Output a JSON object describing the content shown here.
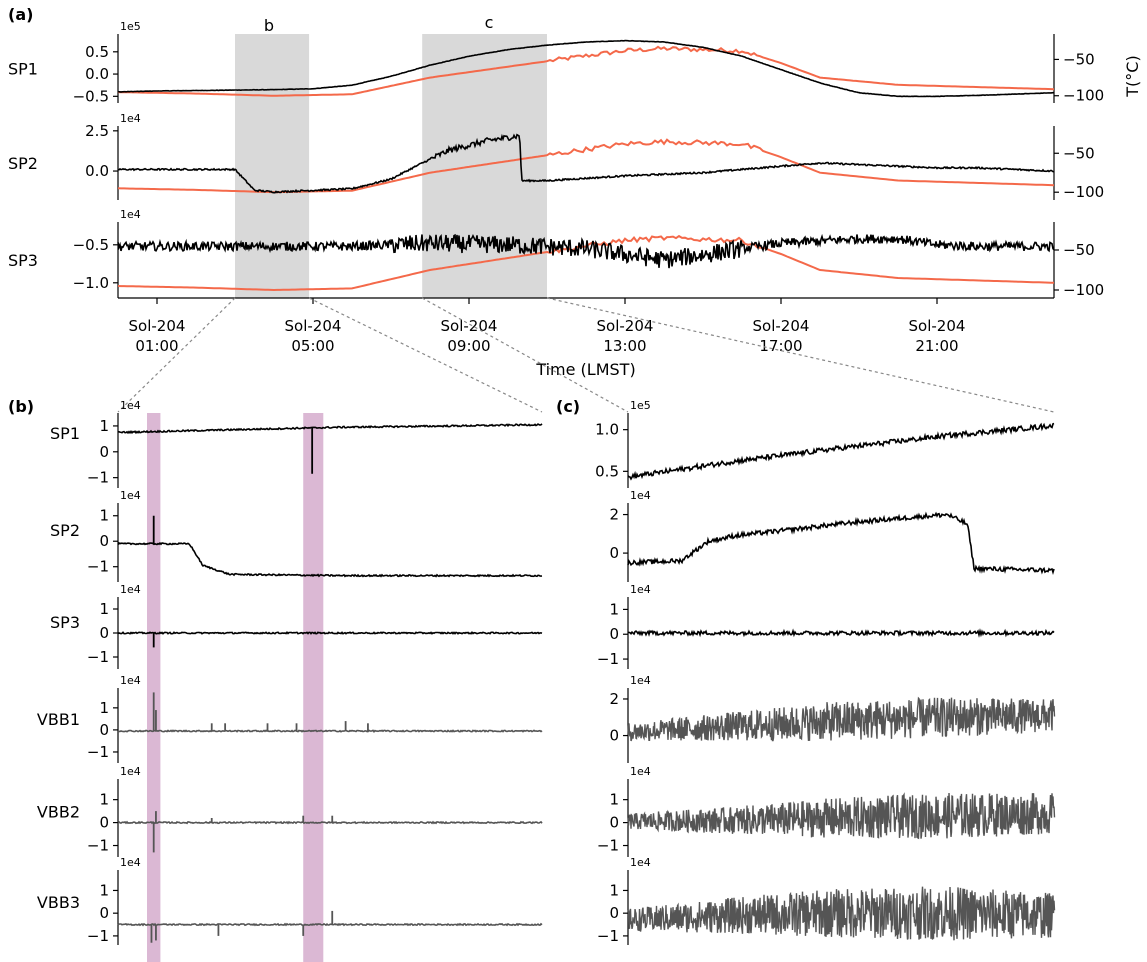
{
  "panels": {
    "a": {
      "label": "(a)",
      "xlabel": "Time (LMST)",
      "right_ylabel": "T(°C)",
      "shade_b": "b",
      "shade_c": "c",
      "ticks": [
        "Sol-204\n01:00",
        "Sol-204\n05:00",
        "Sol-204\n09:00",
        "Sol-204\n13:00",
        "Sol-204\n17:00",
        "Sol-204\n21:00"
      ]
    },
    "b": {
      "label": "(b)"
    },
    "c": {
      "label": "(c)"
    }
  },
  "colors": {
    "signal": "#000000",
    "vbb_signal": "#555555",
    "temperature": "#f4694a",
    "shade_gray": "#d9d9d9",
    "shade_event": "#dbb8d4"
  },
  "chart_data": [
    {
      "type": "line",
      "panel": "a",
      "xlabel": "Time (LMST)",
      "x_ticks": [
        "Sol-204 01:00",
        "Sol-204 05:00",
        "Sol-204 09:00",
        "Sol-204 13:00",
        "Sol-204 17:00",
        "Sol-204 21:00"
      ],
      "x_range_hours": [
        0,
        24
      ],
      "shaded_windows": [
        {
          "label": "b",
          "hours": [
            3.0,
            4.9
          ]
        },
        {
          "label": "c",
          "hours": [
            7.8,
            11.0
          ]
        }
      ],
      "rows": [
        {
          "name": "SP1",
          "scale": "1e5",
          "yticks": [
            "0.5",
            "0.0",
            "−0.5"
          ],
          "ytick_values": [
            0.5,
            0.0,
            -0.5
          ],
          "ylim": [
            -0.65,
            0.9
          ],
          "right_yticks": [
            "−50",
            "−100"
          ],
          "right_ytick_values": [
            -50,
            -100
          ],
          "right_ylim": [
            -110,
            -15
          ],
          "signal": {
            "hours": [
              0,
              1,
              2,
              3,
              4,
              5,
              6,
              7,
              8,
              9,
              10,
              11,
              12,
              13,
              14,
              15,
              16,
              17,
              18,
              19,
              20,
              21,
              22,
              23,
              24
            ],
            "values": [
              -0.4,
              -0.38,
              -0.37,
              -0.36,
              -0.35,
              -0.33,
              -0.25,
              -0.05,
              0.2,
              0.4,
              0.55,
              0.65,
              0.72,
              0.75,
              0.72,
              0.6,
              0.4,
              0.1,
              -0.2,
              -0.42,
              -0.5,
              -0.5,
              -0.48,
              -0.45,
              -0.42
            ]
          },
          "temperature": {
            "hours": [
              0,
              2,
              4,
              6,
              8,
              10,
              12,
              13,
              14,
              16,
              17,
              18,
              20,
              22,
              24
            ],
            "values": [
              -95,
              -97,
              -100,
              -98,
              -75,
              -60,
              -45,
              -38,
              -35,
              -38,
              -55,
              -75,
              -85,
              -88,
              -91
            ]
          }
        },
        {
          "name": "SP2",
          "scale": "1e4",
          "yticks": [
            "2.5",
            "0.0"
          ],
          "ytick_values": [
            2.5,
            0.0
          ],
          "ylim": [
            -1.8,
            2.8
          ],
          "right_yticks": [
            "−50",
            "−100"
          ],
          "right_ytick_values": [
            -50,
            -100
          ],
          "right_ylim": [
            -110,
            -15
          ],
          "signal": {
            "hours": [
              0,
              1,
              2,
              3,
              3.5,
              4,
              5,
              6,
              7,
              7.8,
              8.5,
              9.5,
              10.3,
              10.35,
              11,
              13,
              15,
              17,
              18,
              19,
              20,
              21,
              22,
              23,
              24
            ],
            "values": [
              0.1,
              0.1,
              0.1,
              0.1,
              -1.2,
              -1.3,
              -1.2,
              -1.1,
              -0.5,
              0.5,
              1.3,
              1.9,
              2.2,
              -0.6,
              -0.6,
              -0.3,
              -0.1,
              0.3,
              0.5,
              0.4,
              0.3,
              0.2,
              0.2,
              0.1,
              0.0
            ]
          },
          "temperature": {
            "hours": [
              0,
              2,
              4,
              6,
              8,
              10,
              12,
              13,
              14,
              16,
              17,
              18,
              20,
              22,
              24
            ],
            "values": [
              -95,
              -97,
              -100,
              -98,
              -75,
              -60,
              -45,
              -38,
              -35,
              -38,
              -55,
              -75,
              -85,
              -88,
              -91
            ]
          }
        },
        {
          "name": "SP3",
          "scale": "1e4",
          "yticks": [
            "−0.5",
            "−1.0"
          ],
          "ytick_values": [
            -0.5,
            -1.0
          ],
          "ylim": [
            -1.2,
            -0.2
          ],
          "right_yticks": [
            "−50",
            "−100"
          ],
          "right_ytick_values": [
            -50,
            -100
          ],
          "right_ylim": [
            -110,
            -15
          ],
          "signal": {
            "hours": [
              0,
              2,
              4,
              6,
              8,
              10,
              12,
              14,
              15,
              16,
              17,
              18,
              19,
              20,
              21,
              22,
              24
            ],
            "values": [
              -0.52,
              -0.52,
              -0.52,
              -0.52,
              -0.48,
              -0.5,
              -0.55,
              -0.7,
              -0.63,
              -0.55,
              -0.48,
              -0.45,
              -0.42,
              -0.42,
              -0.5,
              -0.52,
              -0.52
            ]
          },
          "temperature": {
            "hours": [
              0,
              2,
              4,
              6,
              8,
              10,
              12,
              13,
              14,
              16,
              17,
              18,
              20,
              22,
              24
            ],
            "values": [
              -95,
              -97,
              -100,
              -98,
              -75,
              -60,
              -45,
              -38,
              -35,
              -38,
              -55,
              -75,
              -85,
              -88,
              -91
            ]
          }
        }
      ]
    },
    {
      "type": "line",
      "panel": "b",
      "x_range_hours": [
        3.0,
        4.9
      ],
      "event_windows_hours": [
        [
          3.13,
          3.19
        ],
        [
          3.83,
          3.92
        ]
      ],
      "rows": [
        {
          "name": "SP1",
          "scale": "1e4",
          "yticks": [
            "1",
            "0",
            "−1"
          ],
          "ytick_values": [
            1,
            0,
            -1
          ],
          "ylim": [
            -1.4,
            1.5
          ],
          "baseline": {
            "hours": [
              3.0,
              3.5,
              4.0,
              4.5,
              4.9
            ],
            "values": [
              0.75,
              0.85,
              0.95,
              1.0,
              1.05
            ]
          },
          "spikes": [
            {
              "hour": 3.87,
              "value": -0.85
            }
          ]
        },
        {
          "name": "SP2",
          "scale": "1e4",
          "yticks": [
            "1",
            "0",
            "−1"
          ],
          "ytick_values": [
            1,
            0,
            -1
          ],
          "ylim": [
            -1.6,
            1.5
          ],
          "baseline": {
            "hours": [
              3.0,
              3.3,
              3.32,
              3.38,
              3.5,
              4.0,
              4.5,
              4.9
            ],
            "values": [
              -0.1,
              -0.1,
              -0.1,
              -0.95,
              -1.3,
              -1.35,
              -1.35,
              -1.35
            ]
          },
          "spikes": [
            {
              "hour": 3.16,
              "value": 1.0
            }
          ]
        },
        {
          "name": "SP3",
          "scale": "1e4",
          "yticks": [
            "1",
            "0",
            "−1"
          ],
          "ytick_values": [
            1,
            0,
            -1
          ],
          "ylim": [
            -1.5,
            1.5
          ],
          "baseline": {
            "hours": [
              3.0,
              4.9
            ],
            "values": [
              0.0,
              0.0
            ]
          },
          "spikes": [
            {
              "hour": 3.16,
              "value": -0.6
            }
          ]
        },
        {
          "name": "VBB1",
          "scale": "1e4",
          "yticks": [
            "1",
            "0",
            "−1"
          ],
          "ytick_values": [
            1,
            0,
            -1
          ],
          "ylim": [
            -1.5,
            1.9
          ],
          "baseline": {
            "hours": [
              3.0,
              4.9
            ],
            "values": [
              -0.05,
              -0.05
            ]
          },
          "spikes": [
            {
              "hour": 3.16,
              "value": 1.7
            },
            {
              "hour": 3.17,
              "value": 0.9
            },
            {
              "hour": 3.42,
              "value": 0.3
            },
            {
              "hour": 3.48,
              "value": 0.3
            },
            {
              "hour": 3.67,
              "value": 0.3
            },
            {
              "hour": 3.8,
              "value": 0.3
            },
            {
              "hour": 4.02,
              "value": 0.4
            },
            {
              "hour": 4.12,
              "value": 0.3
            }
          ]
        },
        {
          "name": "VBB2",
          "scale": "1e4",
          "yticks": [
            "1",
            "0",
            "−1"
          ],
          "ytick_values": [
            1,
            0,
            -1
          ],
          "ylim": [
            -1.5,
            1.9
          ],
          "baseline": {
            "hours": [
              3.0,
              4.9
            ],
            "values": [
              0.0,
              0.0
            ]
          },
          "spikes": [
            {
              "hour": 3.16,
              "value": -1.3
            },
            {
              "hour": 3.17,
              "value": 0.5
            },
            {
              "hour": 3.42,
              "value": 0.2
            },
            {
              "hour": 3.83,
              "value": 0.3
            },
            {
              "hour": 3.96,
              "value": 0.3
            }
          ]
        },
        {
          "name": "VBB3",
          "scale": "1e4",
          "yticks": [
            "1",
            "0",
            "−1"
          ],
          "ytick_values": [
            1,
            0,
            -1
          ],
          "ylim": [
            -1.4,
            1.9
          ],
          "baseline": {
            "hours": [
              3.0,
              4.9
            ],
            "values": [
              -0.5,
              -0.5
            ]
          },
          "spikes": [
            {
              "hour": 3.15,
              "value": -1.3
            },
            {
              "hour": 3.17,
              "value": -1.2
            },
            {
              "hour": 3.45,
              "value": -1.0
            },
            {
              "hour": 3.83,
              "value": -1.0
            },
            {
              "hour": 3.96,
              "value": 0.1
            }
          ]
        }
      ]
    },
    {
      "type": "line",
      "panel": "c",
      "x_range_hours": [
        7.8,
        11.0
      ],
      "rows": [
        {
          "name": "SP1",
          "scale": "1e5",
          "yticks": [
            "1.0",
            "0.5"
          ],
          "ytick_values": [
            1.0,
            0.5
          ],
          "ylim": [
            0.3,
            1.2
          ],
          "signal": {
            "hours": [
              7.8,
              8.6,
              9.4,
              10.2,
              11.0
            ],
            "values": [
              0.43,
              0.62,
              0.78,
              0.93,
              1.05
            ]
          }
        },
        {
          "name": "SP2",
          "scale": "1e4",
          "yticks": [
            "2",
            "0"
          ],
          "ytick_values": [
            2,
            0
          ],
          "ylim": [
            -1.5,
            2.6
          ],
          "signal": {
            "hours": [
              7.8,
              8.2,
              8.4,
              8.6,
              9.0,
              9.5,
              10.0,
              10.2,
              10.35,
              10.4,
              11.0
            ],
            "values": [
              -0.5,
              -0.4,
              0.6,
              0.9,
              1.2,
              1.6,
              1.9,
              2.0,
              1.5,
              -0.8,
              -0.9
            ]
          }
        },
        {
          "name": "SP3",
          "scale": "1e4",
          "yticks": [
            "1",
            "0",
            "−1"
          ],
          "ytick_values": [
            1,
            0,
            -1
          ],
          "ylim": [
            -1.4,
            1.5
          ],
          "signal": {
            "hours": [
              7.8,
              11.0
            ],
            "values": [
              0.05,
              0.05
            ]
          }
        },
        {
          "name": "VBB1",
          "scale": "1e4",
          "yticks": [
            "2",
            "0"
          ],
          "ytick_values": [
            2,
            0
          ],
          "ylim": [
            -1.5,
            2.6
          ],
          "envelope": {
            "hours": [
              7.8,
              8.6,
              9.4,
              10.2,
              11.0
            ],
            "center": [
              0.2,
              0.5,
              0.8,
              1.0,
              1.1
            ],
            "half_width": [
              0.5,
              0.8,
              1.1,
              1.1,
              0.9
            ]
          }
        },
        {
          "name": "VBB2",
          "scale": "1e4",
          "yticks": [
            "1",
            "0",
            "−1"
          ],
          "ytick_values": [
            1,
            0,
            -1
          ],
          "ylim": [
            -1.5,
            1.9
          ],
          "envelope": {
            "hours": [
              7.8,
              8.6,
              9.4,
              10.2,
              11.0
            ],
            "center": [
              0.05,
              0.1,
              0.2,
              0.3,
              0.4
            ],
            "half_width": [
              0.35,
              0.6,
              0.9,
              1.0,
              0.9
            ]
          }
        },
        {
          "name": "VBB3",
          "scale": "1e4",
          "yticks": [
            "1",
            "0",
            "−1"
          ],
          "ytick_values": [
            1,
            0,
            -1
          ],
          "ylim": [
            -1.4,
            1.9
          ],
          "envelope": {
            "hours": [
              7.8,
              8.6,
              9.4,
              10.2,
              11.0
            ],
            "center": [
              -0.3,
              -0.1,
              0.0,
              0.0,
              -0.1
            ],
            "half_width": [
              0.5,
              0.8,
              1.1,
              1.2,
              1.0
            ]
          }
        }
      ]
    }
  ]
}
